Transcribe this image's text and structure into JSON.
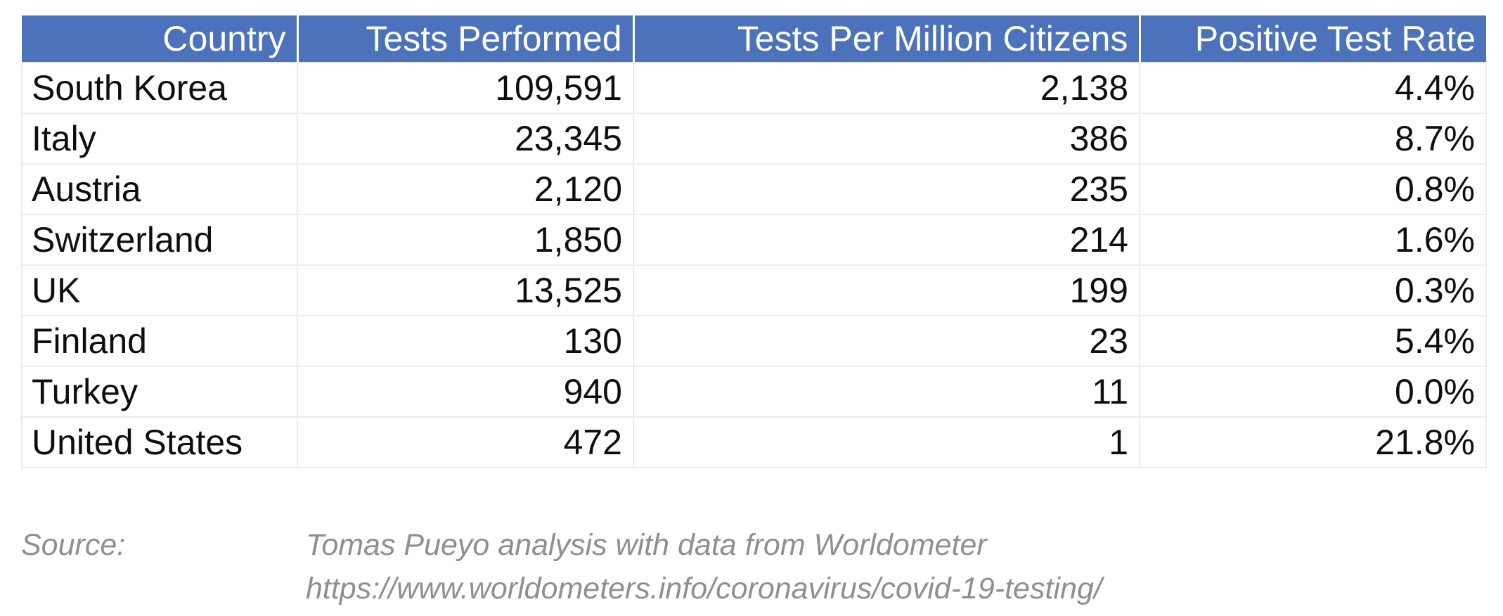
{
  "colors": {
    "header_bg": "#4b72ba",
    "header_text": "#ffffff",
    "body_text": "#0e0e0e",
    "grid_line": "#ececec",
    "source_text": "#8f8f8f"
  },
  "table": {
    "columns": [
      {
        "label": "Country",
        "align": "left"
      },
      {
        "label": "Tests Performed",
        "align": "right"
      },
      {
        "label": "Tests Per Million Citizens",
        "align": "right"
      },
      {
        "label": "Positive Test Rate",
        "align": "right"
      }
    ],
    "rows": [
      [
        "South Korea",
        "109,591",
        "2,138",
        "4.4%"
      ],
      [
        "Italy",
        "23,345",
        "386",
        "8.7%"
      ],
      [
        "Austria",
        "2,120",
        "235",
        "0.8%"
      ],
      [
        "Switzerland",
        "1,850",
        "214",
        "1.6%"
      ],
      [
        "UK",
        "13,525",
        "199",
        "0.3%"
      ],
      [
        "Finland",
        "130",
        "23",
        "5.4%"
      ],
      [
        "Turkey",
        "940",
        "11",
        "0.0%"
      ],
      [
        "United States",
        "472",
        "1",
        "21.8%"
      ]
    ]
  },
  "source": {
    "label": "Source:",
    "attribution": "Tomas Pueyo analysis with data from Worldometer",
    "url": "https://www.worldometers.info/coronavirus/covid-19-testing/"
  },
  "chart_data": {
    "type": "table",
    "title": "",
    "columns": [
      "Country",
      "Tests Performed",
      "Tests Per Million Citizens",
      "Positive Test Rate"
    ],
    "rows": [
      {
        "country": "South Korea",
        "tests_performed": 109591,
        "tests_per_million": 2138,
        "positive_rate_pct": 4.4
      },
      {
        "country": "Italy",
        "tests_performed": 23345,
        "tests_per_million": 386,
        "positive_rate_pct": 8.7
      },
      {
        "country": "Austria",
        "tests_performed": 2120,
        "tests_per_million": 235,
        "positive_rate_pct": 0.8
      },
      {
        "country": "Switzerland",
        "tests_performed": 1850,
        "tests_per_million": 214,
        "positive_rate_pct": 1.6
      },
      {
        "country": "UK",
        "tests_performed": 13525,
        "tests_per_million": 199,
        "positive_rate_pct": 0.3
      },
      {
        "country": "Finland",
        "tests_performed": 130,
        "tests_per_million": 23,
        "positive_rate_pct": 5.4
      },
      {
        "country": "Turkey",
        "tests_performed": 940,
        "tests_per_million": 11,
        "positive_rate_pct": 0.0
      },
      {
        "country": "United States",
        "tests_performed": 472,
        "tests_per_million": 1,
        "positive_rate_pct": 21.8
      }
    ],
    "source": "Tomas Pueyo analysis with data from Worldometer — https://www.worldometers.info/coronavirus/covid-19-testing/"
  }
}
